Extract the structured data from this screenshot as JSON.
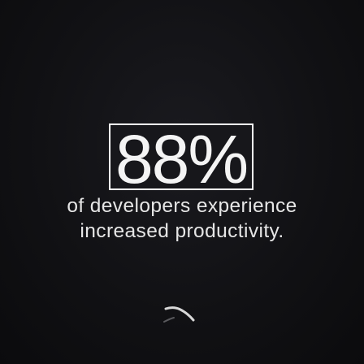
{
  "stat": {
    "value": "88%"
  },
  "caption": {
    "line1": "of developers experience",
    "line2": "increased productivity."
  },
  "icons": {
    "decorative_mark": "curved-stroke-icon"
  },
  "colors": {
    "background": "#0e0e11",
    "text": "#e6e6e6",
    "box_border": "#ffffff"
  }
}
